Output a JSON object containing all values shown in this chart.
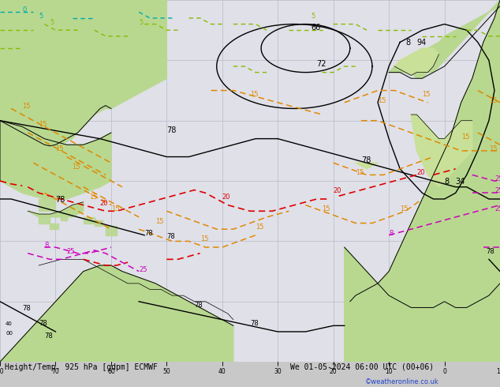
{
  "title_left": "Height/Temp. 925 hPa [gdpm] ECMWF",
  "title_right": "We 01-05-2024 06:00 UTC (00+06)",
  "copyright": "©weatheronline.co.uk",
  "bg_color": "#c8c8c8",
  "map_bg": "#e0e0e8",
  "land_color": "#b8d890",
  "land_color2": "#c8e098",
  "water_color": "#d8e4f0",
  "grid_color": "#b8b8c8",
  "title_color": "#000000",
  "copyright_color": "#2244cc",
  "black": "#000000",
  "orange": "#e08800",
  "red": "#dd0000",
  "magenta": "#cc00bb",
  "cyan": "#00aaaa",
  "green": "#88bb00",
  "label_fs": 7,
  "title_fs": 8,
  "fig_width": 6.34,
  "fig_height": 4.9,
  "dpi": 100,
  "lon_min": -80,
  "lon_max": 10,
  "lat_min": -5,
  "lat_max": 55
}
